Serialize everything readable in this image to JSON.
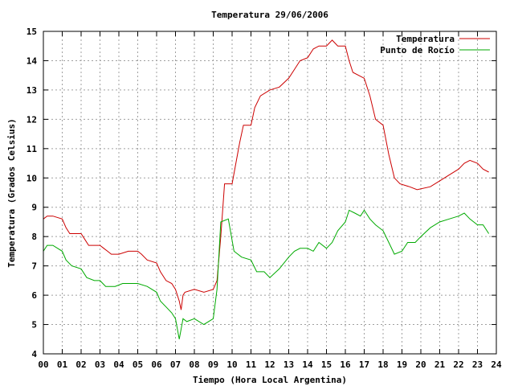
{
  "chart_data": {
    "type": "line",
    "title": "Temperatura 29/06/2006",
    "xlabel": "Tiempo (Hora Local Argentina)",
    "ylabel": "Temperatura (Grados Celsius)",
    "xlim": [
      0,
      24
    ],
    "ylim": [
      4,
      15
    ],
    "x_ticks": [
      "00",
      "01",
      "02",
      "03",
      "04",
      "05",
      "06",
      "07",
      "08",
      "09",
      "10",
      "11",
      "12",
      "13",
      "14",
      "15",
      "16",
      "17",
      "18",
      "19",
      "20",
      "21",
      "22",
      "23",
      "24"
    ],
    "y_ticks": [
      "4",
      "5",
      "6",
      "7",
      "8",
      "9",
      "10",
      "11",
      "12",
      "13",
      "14",
      "15"
    ],
    "grid": true,
    "legend_position": "top-right",
    "series": [
      {
        "name": "Temperatura",
        "color": "#cc0000",
        "points": [
          [
            0.0,
            8.6
          ],
          [
            0.2,
            8.7
          ],
          [
            0.5,
            8.7
          ],
          [
            1.0,
            8.6
          ],
          [
            1.2,
            8.3
          ],
          [
            1.4,
            8.1
          ],
          [
            2.0,
            8.1
          ],
          [
            2.2,
            7.9
          ],
          [
            2.4,
            7.7
          ],
          [
            3.0,
            7.7
          ],
          [
            3.2,
            7.6
          ],
          [
            3.4,
            7.5
          ],
          [
            3.6,
            7.4
          ],
          [
            4.0,
            7.4
          ],
          [
            4.5,
            7.5
          ],
          [
            5.0,
            7.5
          ],
          [
            5.2,
            7.4
          ],
          [
            5.5,
            7.2
          ],
          [
            6.0,
            7.1
          ],
          [
            6.2,
            6.8
          ],
          [
            6.5,
            6.5
          ],
          [
            6.8,
            6.4
          ],
          [
            7.0,
            6.2
          ],
          [
            7.2,
            5.8
          ],
          [
            7.3,
            5.5
          ],
          [
            7.4,
            6.0
          ],
          [
            7.5,
            6.1
          ],
          [
            8.0,
            6.2
          ],
          [
            8.5,
            6.1
          ],
          [
            9.0,
            6.2
          ],
          [
            9.2,
            6.5
          ],
          [
            9.4,
            8.0
          ],
          [
            9.6,
            9.8
          ],
          [
            10.0,
            9.8
          ],
          [
            10.2,
            10.5
          ],
          [
            10.4,
            11.2
          ],
          [
            10.6,
            11.8
          ],
          [
            11.0,
            11.8
          ],
          [
            11.2,
            12.4
          ],
          [
            11.5,
            12.8
          ],
          [
            12.0,
            13.0
          ],
          [
            12.5,
            13.1
          ],
          [
            13.0,
            13.4
          ],
          [
            13.3,
            13.7
          ],
          [
            13.6,
            14.0
          ],
          [
            14.0,
            14.1
          ],
          [
            14.3,
            14.4
          ],
          [
            14.6,
            14.5
          ],
          [
            15.0,
            14.5
          ],
          [
            15.3,
            14.7
          ],
          [
            15.6,
            14.5
          ],
          [
            16.0,
            14.5
          ],
          [
            16.2,
            14.0
          ],
          [
            16.4,
            13.6
          ],
          [
            17.0,
            13.4
          ],
          [
            17.3,
            12.8
          ],
          [
            17.6,
            12.0
          ],
          [
            18.0,
            11.8
          ],
          [
            18.3,
            10.8
          ],
          [
            18.6,
            10.0
          ],
          [
            18.9,
            9.8
          ],
          [
            19.4,
            9.7
          ],
          [
            19.8,
            9.6
          ],
          [
            20.5,
            9.7
          ],
          [
            21.0,
            9.9
          ],
          [
            21.5,
            10.1
          ],
          [
            22.0,
            10.3
          ],
          [
            22.3,
            10.5
          ],
          [
            22.6,
            10.6
          ],
          [
            23.0,
            10.5
          ],
          [
            23.3,
            10.3
          ],
          [
            23.6,
            10.2
          ]
        ]
      },
      {
        "name": "Punto de Rocío",
        "color": "#00aa00",
        "points": [
          [
            0.0,
            7.5
          ],
          [
            0.2,
            7.7
          ],
          [
            0.5,
            7.7
          ],
          [
            1.0,
            7.5
          ],
          [
            1.2,
            7.2
          ],
          [
            1.5,
            7.0
          ],
          [
            2.0,
            6.9
          ],
          [
            2.3,
            6.6
          ],
          [
            2.7,
            6.5
          ],
          [
            3.0,
            6.5
          ],
          [
            3.3,
            6.3
          ],
          [
            3.8,
            6.3
          ],
          [
            4.2,
            6.4
          ],
          [
            5.0,
            6.4
          ],
          [
            5.5,
            6.3
          ],
          [
            6.0,
            6.1
          ],
          [
            6.2,
            5.8
          ],
          [
            6.5,
            5.6
          ],
          [
            6.8,
            5.4
          ],
          [
            7.0,
            5.2
          ],
          [
            7.2,
            4.5
          ],
          [
            7.4,
            5.2
          ],
          [
            7.6,
            5.1
          ],
          [
            8.0,
            5.2
          ],
          [
            8.5,
            5.0
          ],
          [
            9.0,
            5.2
          ],
          [
            9.2,
            6.2
          ],
          [
            9.4,
            8.5
          ],
          [
            9.8,
            8.6
          ],
          [
            10.1,
            7.5
          ],
          [
            10.5,
            7.3
          ],
          [
            11.0,
            7.2
          ],
          [
            11.3,
            6.8
          ],
          [
            11.7,
            6.8
          ],
          [
            12.0,
            6.6
          ],
          [
            12.5,
            6.9
          ],
          [
            13.0,
            7.3
          ],
          [
            13.3,
            7.5
          ],
          [
            13.6,
            7.6
          ],
          [
            14.0,
            7.6
          ],
          [
            14.3,
            7.5
          ],
          [
            14.6,
            7.8
          ],
          [
            15.0,
            7.6
          ],
          [
            15.3,
            7.8
          ],
          [
            15.6,
            8.2
          ],
          [
            16.0,
            8.5
          ],
          [
            16.2,
            8.9
          ],
          [
            16.5,
            8.8
          ],
          [
            16.8,
            8.7
          ],
          [
            17.0,
            8.9
          ],
          [
            17.3,
            8.6
          ],
          [
            17.6,
            8.4
          ],
          [
            18.0,
            8.2
          ],
          [
            18.3,
            7.8
          ],
          [
            18.6,
            7.4
          ],
          [
            19.0,
            7.5
          ],
          [
            19.3,
            7.8
          ],
          [
            19.7,
            7.8
          ],
          [
            20.0,
            8.0
          ],
          [
            20.5,
            8.3
          ],
          [
            21.0,
            8.5
          ],
          [
            21.5,
            8.6
          ],
          [
            22.0,
            8.7
          ],
          [
            22.3,
            8.8
          ],
          [
            22.6,
            8.6
          ],
          [
            23.0,
            8.4
          ],
          [
            23.3,
            8.4
          ],
          [
            23.6,
            8.1
          ]
        ]
      }
    ]
  }
}
